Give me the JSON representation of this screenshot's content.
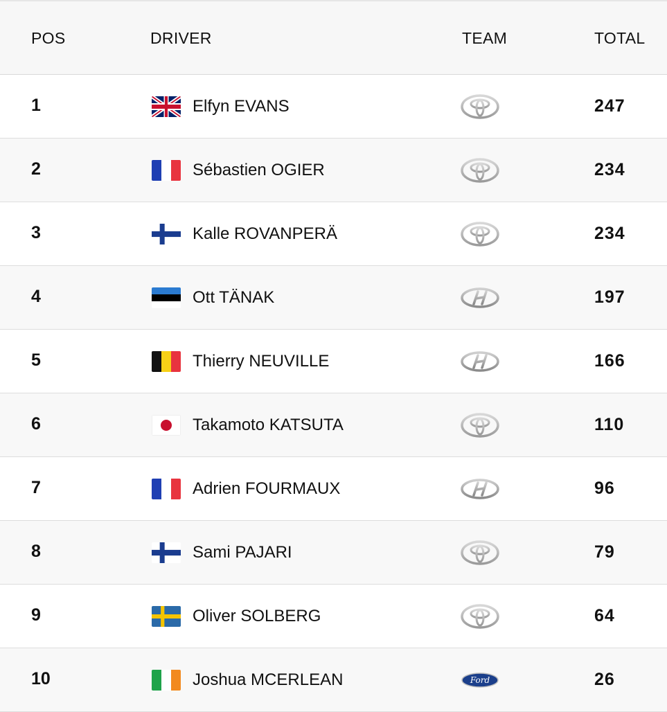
{
  "header": {
    "pos": "POS",
    "driver": "DRIVER",
    "team": "TEAM",
    "total": "TOTAL"
  },
  "rows": [
    {
      "pos": "1",
      "flag": "gb-flag",
      "name": "Elfyn EVANS",
      "team": "toyota-logo",
      "total": "247"
    },
    {
      "pos": "2",
      "flag": "fr-flag",
      "name": "Sébastien OGIER",
      "team": "toyota-logo",
      "total": "234"
    },
    {
      "pos": "3",
      "flag": "fi-flag",
      "name": "Kalle ROVANPERÄ",
      "team": "toyota-logo",
      "total": "234"
    },
    {
      "pos": "4",
      "flag": "ee-flag",
      "name": "Ott TÄNAK",
      "team": "hyundai-logo",
      "total": "197"
    },
    {
      "pos": "5",
      "flag": "be-flag",
      "name": "Thierry NEUVILLE",
      "team": "hyundai-logo",
      "total": "166"
    },
    {
      "pos": "6",
      "flag": "jp-flag",
      "name": "Takamoto KATSUTA",
      "team": "toyota-logo",
      "total": "110"
    },
    {
      "pos": "7",
      "flag": "fr-flag",
      "name": "Adrien FOURMAUX",
      "team": "hyundai-logo",
      "total": "96"
    },
    {
      "pos": "8",
      "flag": "fi-flag",
      "name": "Sami PAJARI",
      "team": "toyota-logo",
      "total": "79"
    },
    {
      "pos": "9",
      "flag": "se-flag",
      "name": "Oliver SOLBERG",
      "team": "toyota-logo",
      "total": "64"
    },
    {
      "pos": "10",
      "flag": "ie-flag",
      "name": "Joshua MCERLEAN",
      "team": "ford-logo",
      "total": "26"
    }
  ],
  "ford_logo_text": "Ford",
  "colors": {
    "header_bg": "#f7f7f7",
    "alt_row_bg": "#f8f8f8",
    "divider": "#dddddd",
    "ford_blue": "#1b3f8b"
  }
}
